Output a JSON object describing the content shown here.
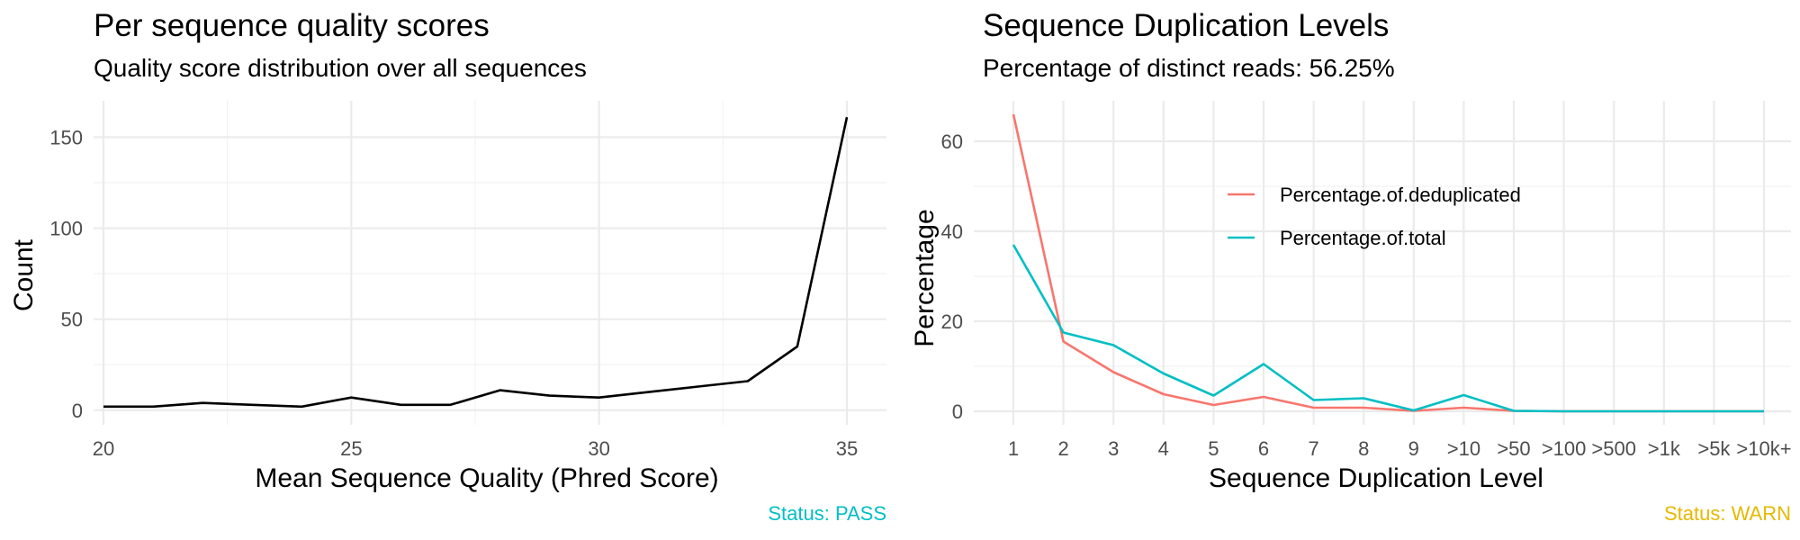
{
  "colors": {
    "line_black": "#000000",
    "series_dedup": "#F8766D",
    "series_total": "#00BFC4",
    "status_pass": "#00BFC4",
    "status_warn": "#E6B800",
    "grid": "#EBEBEB"
  },
  "chart_data": [
    {
      "type": "line",
      "title": "Per sequence quality scores",
      "subtitle": "Quality score distribution over all sequences",
      "xlabel": "Mean Sequence Quality (Phred Score)",
      "ylabel": "Count",
      "xlim": [
        19.8,
        35.8
      ],
      "ylim": [
        -8,
        170
      ],
      "x_ticks": [
        20,
        25,
        30,
        35
      ],
      "y_ticks": [
        0,
        50,
        100,
        150
      ],
      "grid": true,
      "legend": "none",
      "x": [
        20,
        21,
        22,
        23,
        24,
        25,
        26,
        27,
        28,
        29,
        30,
        31,
        32,
        33,
        34,
        35
      ],
      "y": [
        2,
        2,
        4,
        3,
        2,
        7,
        3,
        3,
        11,
        8,
        7,
        10,
        13,
        16,
        35,
        161
      ],
      "status": "Status: PASS"
    },
    {
      "type": "line",
      "title": "Sequence Duplication Levels",
      "subtitle": "Percentage of distinct reads: 56.25%",
      "xlabel": "Sequence Duplication Level",
      "ylabel": "Percentage",
      "ylim": [
        -3,
        69
      ],
      "y_ticks": [
        0,
        20,
        40,
        60
      ],
      "grid": true,
      "legend": "inside-top",
      "categories": [
        "1",
        "2",
        "3",
        "4",
        "5",
        "6",
        "7",
        "8",
        "9",
        ">10",
        ">50",
        ">100",
        ">500",
        ">1k",
        ">5k",
        ">10k+"
      ],
      "series": [
        {
          "name": "Percentage.of.deduplicated",
          "values": [
            66,
            15.5,
            8.7,
            3.8,
            1.4,
            3.2,
            0.8,
            0.8,
            0.1,
            0.8,
            0.1,
            0,
            0,
            0,
            0,
            0
          ]
        },
        {
          "name": "Percentage.of.total",
          "values": [
            37,
            17.5,
            14.7,
            8.4,
            3.5,
            10.5,
            2.5,
            2.9,
            0.2,
            3.6,
            0.1,
            0,
            0,
            0,
            0,
            0
          ]
        }
      ],
      "status": "Status: WARN"
    }
  ]
}
